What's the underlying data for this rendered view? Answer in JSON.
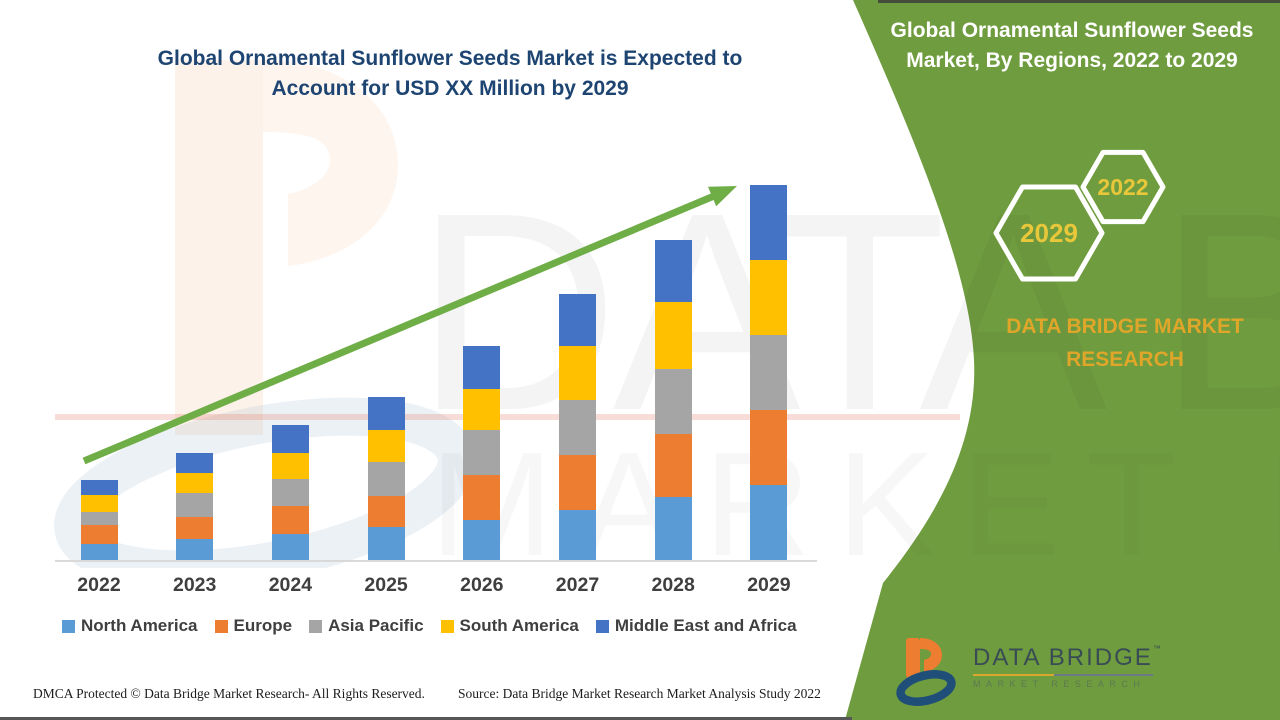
{
  "left_panel": {
    "title_lines": [
      "Global Ornamental Sunflower Seeds Market is Expected to",
      "Account for USD XX Million by 2029"
    ]
  },
  "chart_data": {
    "type": "bar",
    "stacked": true,
    "title": "Global Ornamental Sunflower Seeds Market is Expected to Account for USD XX Million by 2029",
    "categories": [
      "2022",
      "2023",
      "2024",
      "2025",
      "2026",
      "2027",
      "2028",
      "2029"
    ],
    "series": [
      {
        "name": "North America",
        "color": "#5b9bd5",
        "values": [
          16,
          21,
          26,
          33,
          40,
          50,
          63,
          75
        ]
      },
      {
        "name": "Europe",
        "color": "#ed7d31",
        "values": [
          19,
          22,
          28,
          31,
          45,
          55,
          63,
          75
        ]
      },
      {
        "name": "Asia Pacific",
        "color": "#a5a5a5",
        "values": [
          13,
          24,
          27,
          34,
          45,
          55,
          65,
          75
        ]
      },
      {
        "name": "South America",
        "color": "#ffc000",
        "values": [
          17,
          20,
          26,
          32,
          41,
          54,
          67,
          75
        ]
      },
      {
        "name": "Middle East and Africa",
        "color": "#4472c4",
        "values": [
          15,
          20,
          28,
          33,
          43,
          52,
          62,
          75
        ]
      }
    ],
    "totals_relative": [
      80,
      107,
      135,
      163,
      214,
      266,
      320,
      375
    ],
    "y_axis": "no numeric axis shown (values masked as XX in title)",
    "legend_position": "bottom",
    "grid": false,
    "trend_arrow": {
      "color": "#6fad47",
      "direction": "up-right"
    }
  },
  "footer": {
    "dmca": "DMCA Protected © Data Bridge Market Research- All Rights Reserved.",
    "source": "Source: Data Bridge Market Research Market Analysis Study 2022"
  },
  "right_panel": {
    "bg_color": "#6f9c3e",
    "title_lines": [
      "Global Ornamental Sunflower Seeds",
      "Market, By Regions, 2022 to 2029"
    ],
    "hexagons": [
      {
        "label": "2029"
      },
      {
        "label": "2022"
      }
    ],
    "hex_text_color": "#e8c73a",
    "brand_text": "DATA BRIDGE MARKET RESEARCH",
    "logo": {
      "title": "DATA BRIDGE",
      "tm": "™",
      "subtitle": "MARKET RESEARCH"
    }
  },
  "watermark": {
    "row1": "DATA BRIDGE",
    "row2": "MARKET RESEARCH"
  }
}
